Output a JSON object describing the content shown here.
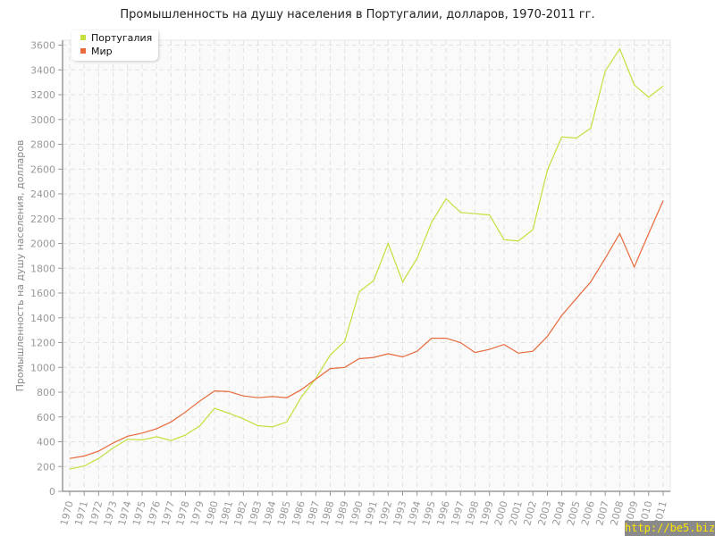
{
  "chart_data": {
    "type": "line",
    "title": "Промышленность на душу населения в Португалии, долларов, 1970-2011 гг.",
    "xlabel": "",
    "ylabel": "Промышленность на душу населения, долларов",
    "x": [
      1970,
      1971,
      1972,
      1973,
      1974,
      1975,
      1976,
      1977,
      1978,
      1979,
      1980,
      1981,
      1982,
      1983,
      1984,
      1985,
      1986,
      1987,
      1988,
      1989,
      1990,
      1991,
      1992,
      1993,
      1994,
      1995,
      1996,
      1997,
      1998,
      1999,
      2000,
      2001,
      2002,
      2003,
      2004,
      2005,
      2006,
      2007,
      2008,
      2009,
      2010,
      2011
    ],
    "ylim": [
      0,
      3600
    ],
    "yticks": [
      0,
      200,
      400,
      600,
      800,
      1000,
      1200,
      1400,
      1600,
      1800,
      2000,
      2200,
      2400,
      2600,
      2800,
      3000,
      3200,
      3400,
      3600
    ],
    "grid": true,
    "legend_position": "top-left",
    "series": [
      {
        "name": "Португалия",
        "color": "#c3e03c",
        "values": [
          180,
          205,
          265,
          350,
          420,
          415,
          440,
          410,
          455,
          530,
          670,
          630,
          585,
          530,
          520,
          560,
          760,
          910,
          1100,
          1210,
          1610,
          1700,
          2000,
          1690,
          1880,
          2170,
          2360,
          2250,
          2240,
          2230,
          2030,
          2020,
          2110,
          2590,
          2860,
          2850,
          2930,
          3390,
          3570,
          3280,
          3180,
          3270
        ]
      },
      {
        "name": "Мир",
        "color": "#e8693a",
        "values": [
          265,
          285,
          325,
          390,
          445,
          470,
          505,
          560,
          640,
          730,
          810,
          805,
          770,
          755,
          765,
          755,
          820,
          905,
          990,
          1000,
          1070,
          1080,
          1110,
          1085,
          1130,
          1235,
          1235,
          1200,
          1120,
          1145,
          1185,
          1115,
          1130,
          1250,
          1420,
          1555,
          1690,
          1880,
          2080,
          1810,
          2080,
          2345
        ]
      }
    ]
  },
  "watermark": "http://be5.biz/"
}
